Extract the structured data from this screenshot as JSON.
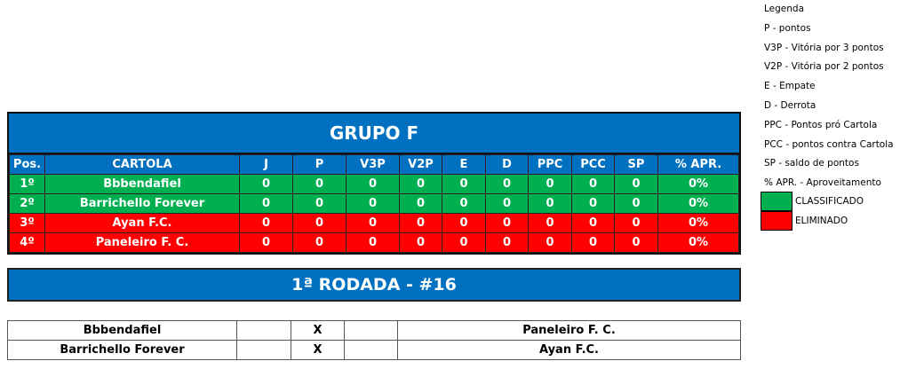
{
  "group": {
    "title": "GRUPO F",
    "headers": [
      "Pos.",
      "CARTOLA",
      "J",
      "P",
      "V3P",
      "V2P",
      "E",
      "D",
      "PPC",
      "PCC",
      "SP",
      "% APR."
    ],
    "rows": [
      {
        "status": "classificado",
        "cells": [
          "1º",
          "Bbbendafiel",
          "0",
          "0",
          "0",
          "0",
          "0",
          "0",
          "0",
          "0",
          "0",
          "0%"
        ]
      },
      {
        "status": "classificado",
        "cells": [
          "2º",
          "Barrichello Forever",
          "0",
          "0",
          "0",
          "0",
          "0",
          "0",
          "0",
          "0",
          "0",
          "0%"
        ]
      },
      {
        "status": "eliminado",
        "cells": [
          "3º",
          "Ayan F.C.",
          "0",
          "0",
          "0",
          "0",
          "0",
          "0",
          "0",
          "0",
          "0",
          "0%"
        ]
      },
      {
        "status": "eliminado",
        "cells": [
          "4º",
          "Paneleiro F. C.",
          "0",
          "0",
          "0",
          "0",
          "0",
          "0",
          "0",
          "0",
          "0",
          "0%"
        ]
      }
    ]
  },
  "round": {
    "title": "1ª RODADA - #16",
    "matches": [
      {
        "home": "Bbbendafiel",
        "home_score": "",
        "vs": "X",
        "away_score": "",
        "away": "Paneleiro F. C."
      },
      {
        "home": "Barrichello Forever",
        "home_score": "",
        "vs": "X",
        "away_score": "",
        "away": "Ayan F.C."
      }
    ]
  },
  "legend": {
    "items": [
      "Legenda",
      "P - pontos",
      "V3P - Vitória por 3 pontos",
      "V2P - Vitória por 2 pontos",
      "E - Empate",
      "D - Derrota",
      "PPC - Pontos pró Cartola",
      "PCC - pontos contra Cartola",
      "SP - saldo de pontos",
      "% APR. - Aproveitamento"
    ],
    "classificado": "CLASSIFICADO",
    "eliminado": "ELIMINADO"
  },
  "colors": {
    "header": "#0070c0",
    "classificado": "#00b050",
    "eliminado": "#ff0000"
  }
}
